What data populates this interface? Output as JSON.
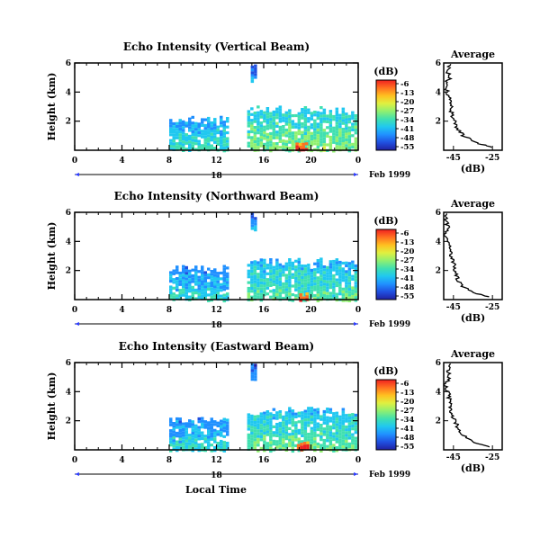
{
  "figure": {
    "bottom_label": "Local Time",
    "month_label": "Feb 1999",
    "day_label": "18",
    "colorbar_title": "(dB)",
    "avg_title": "Average",
    "avg_xlabel": "(dB)"
  },
  "colorscale": {
    "ticks": [
      "-6",
      "-13",
      "-20",
      "-27",
      "-34",
      "-41",
      "-48",
      "-55"
    ],
    "stops": [
      "#2020a0",
      "#2050e0",
      "#2090ff",
      "#20c8f0",
      "#40e0b0",
      "#90f070",
      "#e0f040",
      "#ffc020",
      "#ff7020",
      "#f02020"
    ]
  },
  "chart_data": [
    {
      "type": "heatmap",
      "title": "Echo Intensity (Vertical Beam)",
      "ylabel": "Height (km)",
      "xlabel": "Local Time",
      "x_ticks": [
        "0",
        "4",
        "8",
        "12",
        "16",
        "20",
        "0"
      ],
      "y_ticks": [
        "2",
        "4",
        "6"
      ],
      "xlim": [
        0,
        24
      ],
      "ylim": [
        0,
        6
      ],
      "clim": [
        -55,
        -6
      ],
      "echo_regions": [
        {
          "t0": 8.0,
          "t1": 13.0,
          "h_top": 2.4,
          "intensity_db": -38
        },
        {
          "t0": 14.9,
          "t1": 15.3,
          "h_top": 6.0,
          "h_bottom": 4.8,
          "intensity_db": -45
        },
        {
          "t0": 14.6,
          "t1": 23.8,
          "h_top": 3.1,
          "intensity_db": -33
        },
        {
          "t0": 18.7,
          "t1": 19.7,
          "h_top": 0.6,
          "intensity_db": -8
        }
      ],
      "average_profile": {
        "x_ticks": [
          "-45",
          "-25"
        ],
        "y_ticks": [
          "2",
          "4",
          "6"
        ],
        "height_km": [
          0.2,
          0.5,
          1.0,
          1.5,
          2.0,
          2.5,
          3.0,
          3.5,
          4.0,
          4.5,
          5.0,
          5.5,
          6.0
        ],
        "db": [
          -25,
          -33,
          -40,
          -43,
          -44,
          -46,
          -46,
          -47,
          -48,
          -49,
          -47,
          -48,
          -47
        ]
      }
    },
    {
      "type": "heatmap",
      "title": "Echo Intensity (Northward Beam)",
      "ylabel": "Height (km)",
      "xlabel": "Local Time",
      "x_ticks": [
        "0",
        "4",
        "8",
        "12",
        "16",
        "20",
        "0"
      ],
      "y_ticks": [
        "2",
        "4",
        "6"
      ],
      "xlim": [
        0,
        24
      ],
      "ylim": [
        0,
        6
      ],
      "clim": [
        -55,
        -6
      ],
      "echo_regions": [
        {
          "t0": 8.0,
          "t1": 13.0,
          "h_top": 2.4,
          "intensity_db": -40
        },
        {
          "t0": 14.9,
          "t1": 15.3,
          "h_top": 6.0,
          "h_bottom": 4.8,
          "intensity_db": -45
        },
        {
          "t0": 14.6,
          "t1": 23.8,
          "h_top": 2.9,
          "intensity_db": -36
        },
        {
          "t0": 19.0,
          "t1": 19.6,
          "h_top": 0.5,
          "intensity_db": -10
        }
      ],
      "average_profile": {
        "x_ticks": [
          "-45",
          "-25"
        ],
        "y_ticks": [
          "2",
          "4",
          "6"
        ],
        "height_km": [
          0.2,
          0.5,
          1.0,
          1.5,
          2.0,
          2.5,
          3.0,
          3.5,
          4.0,
          4.5,
          5.0,
          5.5,
          6.0
        ],
        "db": [
          -27,
          -35,
          -41,
          -43,
          -44,
          -45,
          -46,
          -47,
          -48,
          -49,
          -48,
          -49,
          -48
        ]
      }
    },
    {
      "type": "heatmap",
      "title": "Echo Intensity (Eastward Beam)",
      "ylabel": "Height (km)",
      "xlabel": "Local Time",
      "x_ticks": [
        "0",
        "4",
        "8",
        "12",
        "16",
        "20",
        "0"
      ],
      "y_ticks": [
        "2",
        "4",
        "6"
      ],
      "xlim": [
        0,
        24
      ],
      "ylim": [
        0,
        6
      ],
      "clim": [
        -55,
        -6
      ],
      "echo_regions": [
        {
          "t0": 8.0,
          "t1": 13.0,
          "h_top": 2.3,
          "intensity_db": -40
        },
        {
          "t0": 14.9,
          "t1": 15.3,
          "h_top": 6.0,
          "h_bottom": 4.8,
          "intensity_db": -45
        },
        {
          "t0": 14.6,
          "t1": 23.8,
          "h_top": 3.0,
          "intensity_db": -35
        },
        {
          "t0": 18.8,
          "t1": 19.6,
          "h_top": 0.6,
          "intensity_db": -8
        }
      ],
      "average_profile": {
        "x_ticks": [
          "-45",
          "-25"
        ],
        "y_ticks": [
          "2",
          "4",
          "6"
        ],
        "height_km": [
          0.2,
          0.5,
          1.0,
          1.5,
          2.0,
          2.5,
          3.0,
          3.5,
          4.0,
          4.5,
          5.0,
          5.5,
          6.0
        ],
        "db": [
          -26,
          -34,
          -40,
          -43,
          -44,
          -46,
          -47,
          -47,
          -48,
          -49,
          -47,
          -48,
          -47
        ]
      }
    }
  ]
}
